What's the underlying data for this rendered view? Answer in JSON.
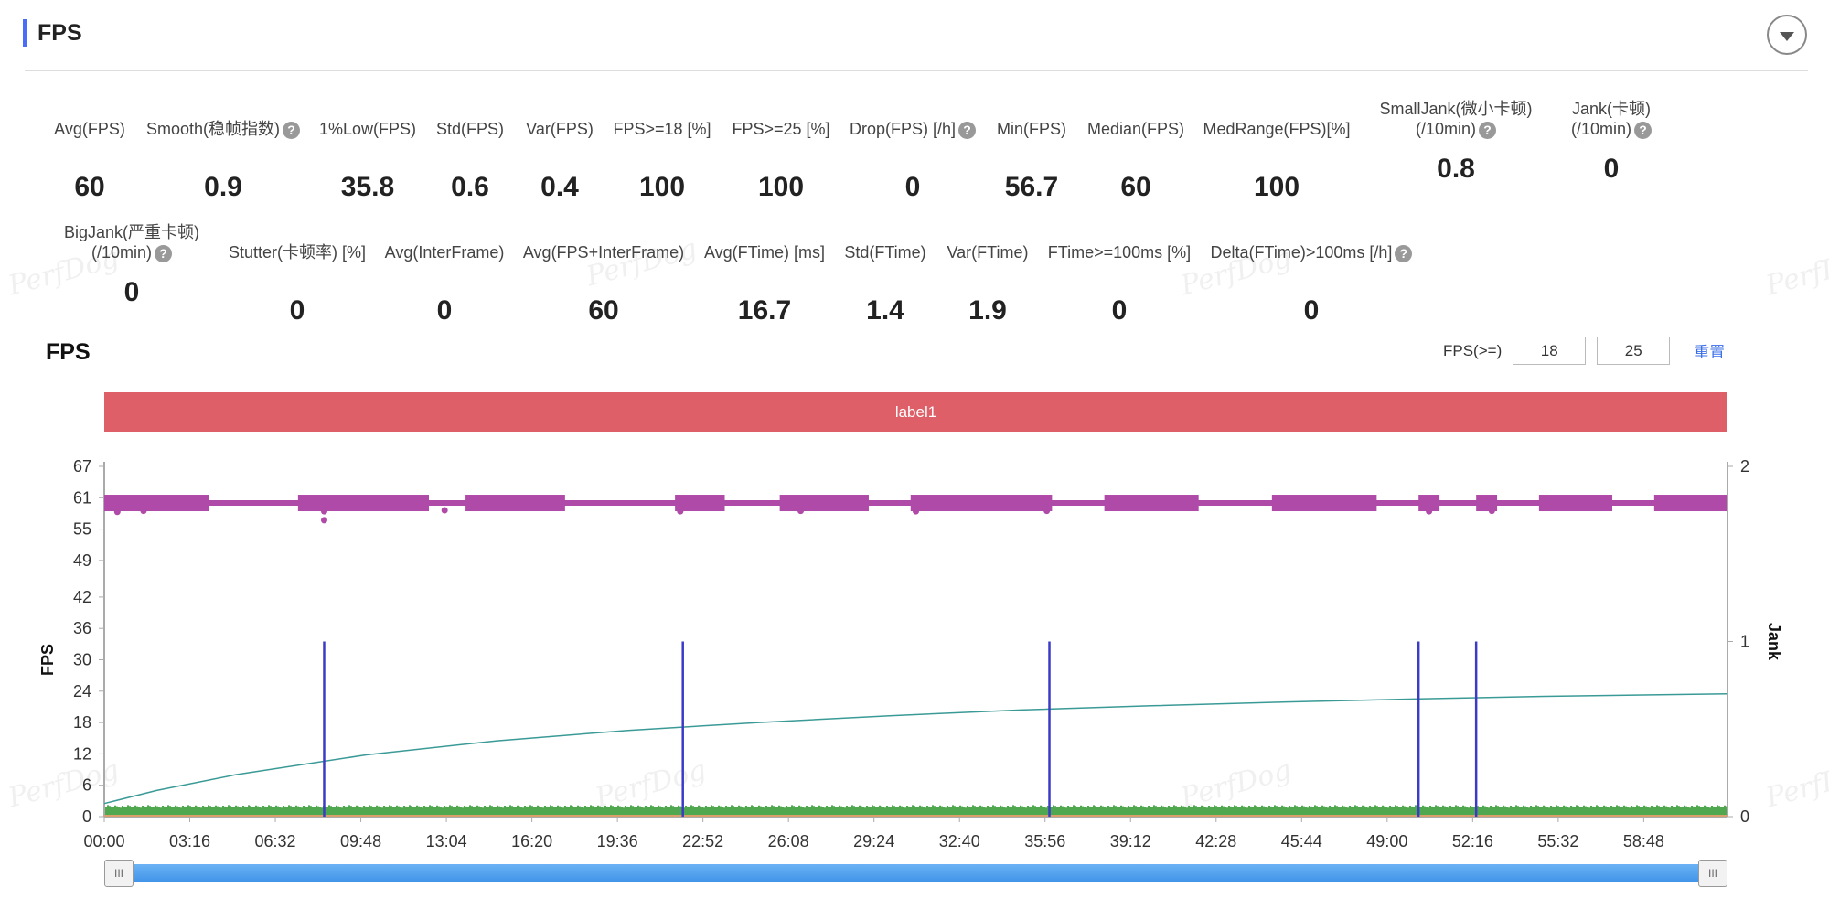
{
  "header": {
    "title": "FPS"
  },
  "metrics_row1": [
    {
      "label": "Avg(FPS)",
      "value": "60",
      "help": false
    },
    {
      "label": "Smooth(稳帧指数)",
      "value": "0.9",
      "help": true
    },
    {
      "label": "1%Low(FPS)",
      "value": "35.8",
      "help": false
    },
    {
      "label": "Std(FPS)",
      "value": "0.6",
      "help": false
    },
    {
      "label": "Var(FPS)",
      "value": "0.4",
      "help": false
    },
    {
      "label": "FPS>=18 [%]",
      "value": "100",
      "help": false
    },
    {
      "label": "FPS>=25 [%]",
      "value": "100",
      "help": false
    },
    {
      "label": "Drop(FPS) [/h]",
      "value": "0",
      "help": true
    },
    {
      "label": "Min(FPS)",
      "value": "56.7",
      "help": false
    },
    {
      "label": "Median(FPS)",
      "value": "60",
      "help": false
    },
    {
      "label": "MedRange(FPS)[%]",
      "value": "100",
      "help": false
    },
    {
      "label": "SmallJank(微小卡顿)",
      "label2": "(/10min)",
      "value": "0.8",
      "help": true
    },
    {
      "label": "Jank(卡顿)",
      "label2": "(/10min)",
      "value": "0",
      "help": true
    }
  ],
  "metrics_row2": [
    {
      "label": "BigJank(严重卡顿)",
      "label2": "(/10min)",
      "value": "0",
      "help": true
    },
    {
      "label": "Stutter(卡顿率) [%]",
      "value": "0",
      "help": false
    },
    {
      "label": "Avg(InterFrame)",
      "value": "0",
      "help": false
    },
    {
      "label": "Avg(FPS+InterFrame)",
      "value": "60",
      "help": false
    },
    {
      "label": "Avg(FTime) [ms]",
      "value": "16.7",
      "help": false
    },
    {
      "label": "Std(FTime)",
      "value": "1.4",
      "help": false
    },
    {
      "label": "Var(FTime)",
      "value": "1.9",
      "help": false
    },
    {
      "label": "FTime>=100ms [%]",
      "value": "0",
      "help": false
    },
    {
      "label": "Delta(FTime)>100ms [/h]",
      "value": "0",
      "help": true
    }
  ],
  "help_icon": "?",
  "watermark": "PerfDog",
  "chart": {
    "title": "FPS",
    "filter_label": "FPS(>=)",
    "filter_values": [
      "18",
      "25"
    ],
    "reset_label": "重置",
    "band_label": "label1"
  },
  "scroller": {
    "handle_glyph": "III"
  },
  "colors": {
    "accent": "#4a6cf7",
    "fps_line": "#b04aa8",
    "jank": "#3b3bc8",
    "ftime_bars": "#4fa84f",
    "curve": "#3a9a96",
    "band": "#de5f67"
  },
  "chart_data": {
    "type": "line",
    "ylabel": "FPS",
    "y2label": "Jank",
    "yticks": [
      0,
      6,
      12,
      18,
      24,
      30,
      36,
      42,
      49,
      55,
      61,
      67
    ],
    "ylim": [
      0,
      67
    ],
    "y2ticks": [
      0,
      1,
      2
    ],
    "y2lim": [
      0,
      2
    ],
    "xticks": [
      "00:00",
      "03:16",
      "06:32",
      "09:48",
      "13:04",
      "16:20",
      "19:36",
      "22:52",
      "26:08",
      "29:24",
      "32:40",
      "35:56",
      "39:12",
      "42:28",
      "45:44",
      "49:00",
      "52:16",
      "55:32",
      "58:48"
    ],
    "x_range_min": [
      0,
      62
    ],
    "fps_value": 60,
    "fps_dense_segments": [
      [
        0,
        4
      ],
      [
        7.4,
        12.4
      ],
      [
        13.8,
        17.6
      ],
      [
        21.8,
        23.7
      ],
      [
        25.8,
        29.2
      ],
      [
        30.8,
        36.2
      ],
      [
        38.2,
        41.8
      ],
      [
        44.6,
        48.6
      ],
      [
        50.2,
        51
      ],
      [
        52.4,
        53.2
      ],
      [
        54.8,
        57.6
      ],
      [
        59.2,
        62
      ]
    ],
    "fps_outliers": [
      [
        0.5,
        58.3
      ],
      [
        1.5,
        58.5
      ],
      [
        8.4,
        58.4
      ],
      [
        8.4,
        56.7
      ],
      [
        13,
        58.6
      ],
      [
        22,
        58.4
      ],
      [
        26.6,
        58.5
      ],
      [
        31,
        58.4
      ],
      [
        36,
        58.5
      ],
      [
        50.6,
        58.4
      ],
      [
        53,
        58.5
      ]
    ],
    "jank_events_min": [
      8.4,
      22.1,
      36.1,
      50.2,
      52.4
    ],
    "jank_value": 1,
    "ftime_curve": [
      [
        0,
        2.5
      ],
      [
        2,
        5
      ],
      [
        5,
        8
      ],
      [
        10,
        11.8
      ],
      [
        15,
        14.5
      ],
      [
        20,
        16.5
      ],
      [
        25,
        18
      ],
      [
        30,
        19.3
      ],
      [
        35,
        20.4
      ],
      [
        40,
        21.2
      ],
      [
        45,
        21.9
      ],
      [
        50,
        22.5
      ],
      [
        55,
        23
      ],
      [
        62,
        23.5
      ]
    ],
    "ftime_bar_level": 1.7
  }
}
